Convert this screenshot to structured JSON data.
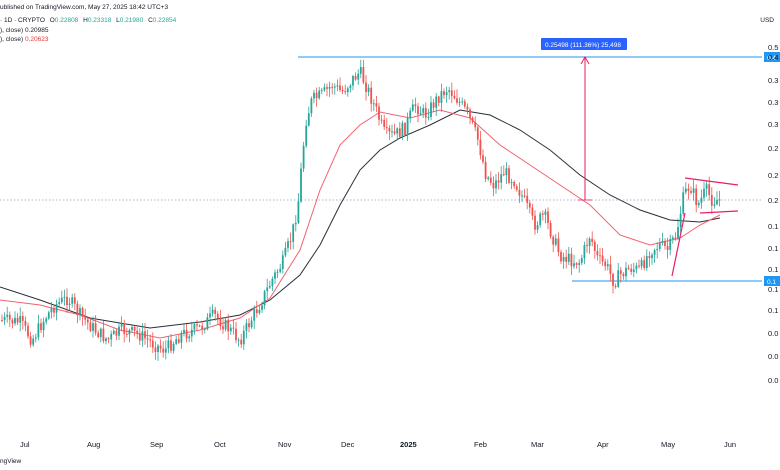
{
  "header": {
    "published": "ublished on TradingView.com, May 27, 2025 18:42 UTC+3",
    "symbol": "· 1D · CRYPTO",
    "ohlc": [
      {
        "label": "O",
        "value": "0.22808",
        "color": "#26a69a"
      },
      {
        "label": "H",
        "value": "0.23318",
        "color": "#26a69a"
      },
      {
        "label": "L",
        "value": "0.21980",
        "color": "#26a69a"
      },
      {
        "label": "C",
        "value": "0.22854",
        "color": "#26a69a"
      }
    ],
    "ma1_label": "), close)",
    "ma1_value": "0.20985",
    "ma2_label": "), close)",
    "ma2_value": "0.20623",
    "ma2_color": "#e53935"
  },
  "currency": "USD",
  "footer": "ngView",
  "colors": {
    "up": "#26a69a",
    "down": "#ef5350",
    "ma_long": "#2a2e39",
    "ma_short": "#f06372",
    "level": "#2962ff",
    "triangle": "#e91e63",
    "measure": "#e91e63",
    "badge": "#2962ff"
  },
  "chart_data": {
    "type": "candlestick",
    "price_labels": [
      "0.5",
      "0.4",
      "0.3",
      "0.3",
      "0.3",
      "0.2",
      "0.2",
      "0.2",
      "0.1",
      "0.1",
      "0.1",
      "0.1",
      "0.1",
      "0.0",
      "0.0",
      "0.0"
    ],
    "date_labels": [
      {
        "text": "Jul",
        "bold": false
      },
      {
        "text": "Aug",
        "bold": false
      },
      {
        "text": "Sep",
        "bold": false
      },
      {
        "text": "Oct",
        "bold": false
      },
      {
        "text": "Nov",
        "bold": false
      },
      {
        "text": "Dec",
        "bold": false
      },
      {
        "text": "2025",
        "bold": true
      },
      {
        "text": "Feb",
        "bold": false
      },
      {
        "text": "Mar",
        "bold": false
      },
      {
        "text": "Apr",
        "bold": false
      },
      {
        "text": "May",
        "bold": false
      },
      {
        "text": "Jun",
        "bold": false
      }
    ],
    "key_levels": [
      {
        "value": "0.4",
        "label": "0.4"
      },
      {
        "value": "0.1",
        "label": "0.1"
      }
    ],
    "measure_label": "0.25498 (111.36%) 25,498",
    "last_close": "0.22854",
    "series": [
      {
        "name": "), close)",
        "value": "0.20985"
      },
      {
        "name": "), close)",
        "value": "0.20623"
      }
    ]
  }
}
